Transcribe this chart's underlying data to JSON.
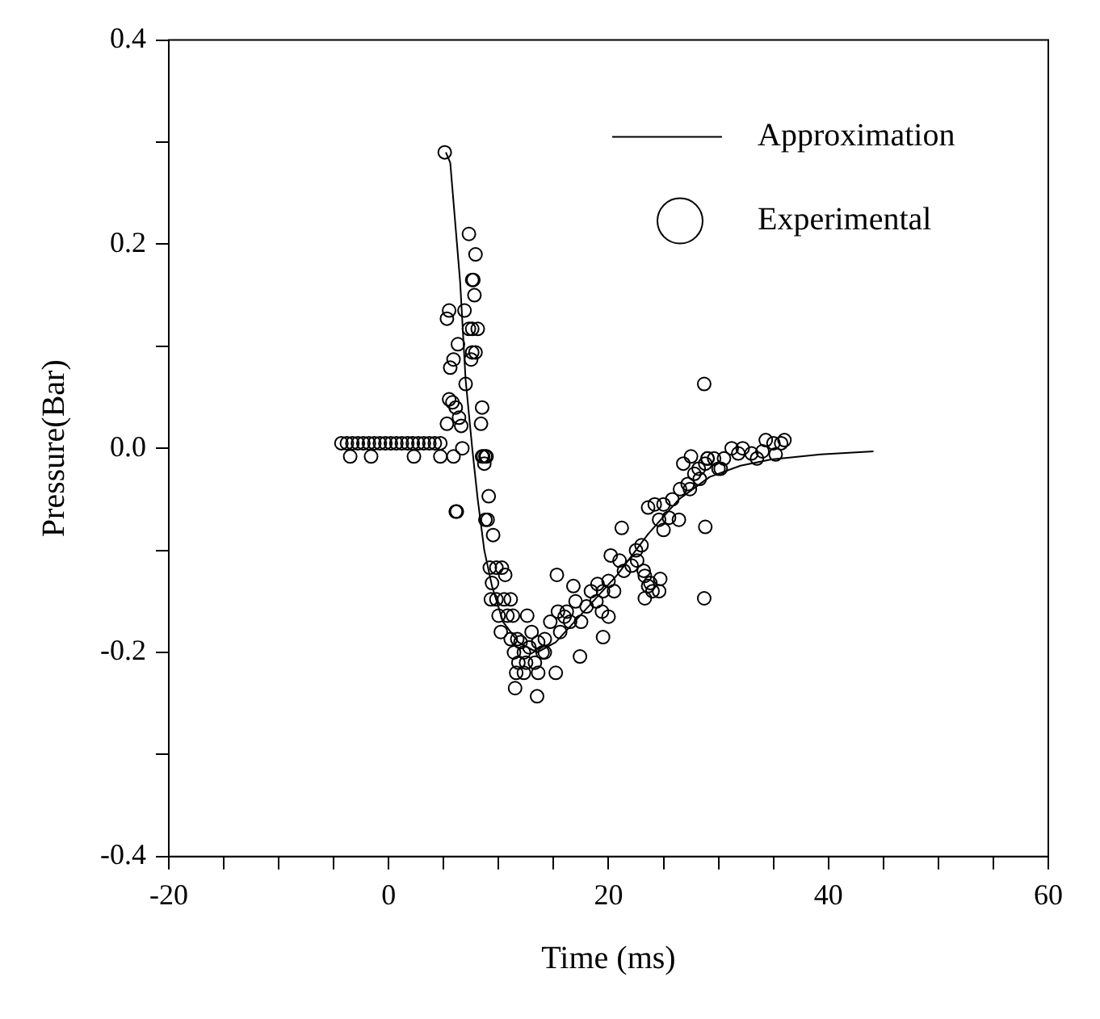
{
  "chart_data": {
    "type": "scatter",
    "xlabel": "Time (ms)",
    "ylabel": "Pressure(Bar)",
    "xlim": [
      -20,
      60
    ],
    "ylim": [
      -0.4,
      0.4
    ],
    "xticks": [
      -20,
      {
        "value": -15,
        "label": null
      },
      {
        "value": -10,
        "label": null
      },
      {
        "value": -5,
        "label": null
      },
      0,
      {
        "value": 5,
        "label": null
      },
      {
        "value": 10,
        "label": null
      },
      {
        "value": 15,
        "label": null
      },
      20,
      {
        "value": 25,
        "label": null
      },
      {
        "value": 30,
        "label": null
      },
      {
        "value": 35,
        "label": null
      },
      40,
      {
        "value": 45,
        "label": null
      },
      {
        "value": 50,
        "label": null
      },
      {
        "value": 55,
        "label": null
      },
      60
    ],
    "yticks": [
      -0.4,
      {
        "value": -0.3,
        "label": null
      },
      -0.2,
      {
        "value": -0.1,
        "label": null
      },
      {
        "value": 0,
        "label": "0.0"
      },
      {
        "value": 0.1,
        "label": null
      },
      0.2,
      {
        "value": 0.3,
        "label": null
      },
      0.4
    ],
    "grid": false,
    "legend": "top right",
    "series": [
      {
        "name": "Approximation",
        "type": "line",
        "marker": "none",
        "line_style": "solid",
        "color": "#000000",
        "x": [
          5.2,
          5.6,
          6.5,
          7.0,
          7.6,
          8.1,
          8.7,
          9.4,
          10.4,
          11.8,
          13.5,
          15.2,
          18,
          20.8,
          23.6,
          26.4,
          29.2,
          32,
          34.8,
          39.3,
          44.1
        ],
        "values": [
          0.29,
          0.28,
          0.163,
          0.067,
          0,
          -0.05,
          -0.1,
          -0.135,
          -0.17,
          -0.19,
          -0.2,
          -0.19,
          -0.157,
          -0.124,
          -0.084,
          -0.05,
          -0.028,
          -0.017,
          -0.011,
          -0.006,
          -0.003
        ]
      },
      {
        "name": "Experimental",
        "type": "scatter",
        "marker": "circle",
        "color": "#000000",
        "x": [
          -4.3,
          -3.8,
          -3.3,
          -2.8,
          -2.3,
          -1.8,
          -1.3,
          -0.8,
          -0.3,
          0.2,
          0.7,
          1.2,
          1.7,
          2.2,
          2.7,
          3.2,
          3.7,
          4.2,
          4.7,
          -3.5,
          -1.6,
          2.3,
          4.7,
          5.1,
          7.3,
          7.9,
          7.6,
          7.7,
          7.8,
          5.5,
          5.3,
          6.9,
          7.3,
          7.6,
          8.1,
          6.3,
          7.6,
          7.9,
          7.5,
          5.9,
          5.6,
          7.0,
          5.5,
          5.8,
          6.1,
          8.5,
          6.4,
          5.3,
          6.6,
          8.4,
          6.7,
          5.9,
          8.5,
          8.6,
          8.8,
          8.9,
          8.7,
          6.1,
          6.2,
          9.1,
          8.8,
          9.0,
          9.5,
          9.2,
          9.8,
          10.3,
          10.6,
          9.4,
          9.3,
          9.8,
          10.5,
          11.1,
          10.0,
          10.8,
          11.3,
          10.2,
          12.6,
          11.1,
          11.7,
          12.0,
          13.0,
          11.4,
          12.3,
          12.8,
          13.6,
          14.2,
          15.3,
          14.7,
          14.0,
          11.8,
          12.5,
          13.3,
          14.2,
          11.6,
          12.3,
          13.6,
          15.2,
          11.5,
          13.5,
          15.4,
          16.2,
          16.8,
          17.0,
          15.6,
          16.5,
          17.5,
          16.0,
          17.4,
          18.4,
          19.0,
          19.5,
          18.0,
          18.9,
          19.4,
          20.0,
          19.5,
          20.0,
          20.5,
          21.0,
          21.4,
          20.2,
          21.2,
          22.1,
          22.6,
          22.5,
          23.0,
          23.3,
          23.6,
          24.0,
          23.3,
          23.8,
          24.6,
          23.2,
          23.6,
          24.2,
          25.0,
          24.6,
          25.0,
          25.5,
          26.4,
          27.2,
          25.8,
          26.5,
          27.4,
          28.3,
          28.2,
          28.8,
          29.0,
          29.6,
          30.2,
          30.5,
          31.8,
          32.2,
          33.0,
          34.0,
          35.0,
          35.7,
          36.0,
          34.3,
          27.5,
          29.0,
          28.7,
          28.8,
          28.7,
          24.7,
          26.8,
          27.8,
          30.0,
          31.2,
          33.5,
          35.2
        ],
        "values": [
          0.005,
          0.005,
          0.005,
          0.005,
          0.005,
          0.005,
          0.005,
          0.005,
          0.005,
          0.005,
          0.005,
          0.005,
          0.005,
          0.005,
          0.005,
          0.005,
          0.005,
          0.005,
          0.005,
          -0.008,
          -0.008,
          -0.008,
          -0.008,
          0.29,
          0.21,
          0.19,
          0.165,
          0.165,
          0.15,
          0.135,
          0.127,
          0.135,
          0.117,
          0.117,
          0.117,
          0.102,
          0.094,
          0.094,
          0.087,
          0.087,
          0.079,
          0.063,
          0.048,
          0.045,
          0.04,
          0.04,
          0.03,
          0.024,
          0.022,
          0.024,
          0,
          -0.008,
          -0.008,
          -0.008,
          -0.008,
          -0.008,
          -0.015,
          -0.062,
          -0.062,
          -0.047,
          -0.07,
          -0.07,
          -0.085,
          -0.117,
          -0.117,
          -0.117,
          -0.124,
          -0.132,
          -0.148,
          -0.148,
          -0.148,
          -0.148,
          -0.164,
          -0.164,
          -0.164,
          -0.18,
          -0.164,
          -0.187,
          -0.187,
          -0.19,
          -0.18,
          -0.2,
          -0.2,
          -0.195,
          -0.19,
          -0.187,
          -0.124,
          -0.17,
          -0.2,
          -0.21,
          -0.21,
          -0.21,
          -0.2,
          -0.22,
          -0.22,
          -0.22,
          -0.22,
          -0.235,
          -0.243,
          -0.16,
          -0.16,
          -0.135,
          -0.15,
          -0.18,
          -0.17,
          -0.17,
          -0.165,
          -0.204,
          -0.14,
          -0.133,
          -0.14,
          -0.155,
          -0.15,
          -0.16,
          -0.165,
          -0.185,
          -0.13,
          -0.14,
          -0.11,
          -0.12,
          -0.105,
          -0.078,
          -0.115,
          -0.11,
          -0.1,
          -0.095,
          -0.125,
          -0.135,
          -0.14,
          -0.147,
          -0.132,
          -0.14,
          -0.12,
          -0.058,
          -0.055,
          -0.055,
          -0.07,
          -0.08,
          -0.068,
          -0.07,
          -0.035,
          -0.05,
          -0.04,
          -0.04,
          -0.03,
          -0.02,
          -0.015,
          -0.01,
          -0.01,
          -0.02,
          -0.01,
          -0.005,
          0,
          -0.005,
          -0.003,
          0.005,
          0.005,
          0.008,
          0.008,
          -0.008,
          -0.01,
          0.063,
          -0.077,
          -0.147,
          -0.128,
          -0.015,
          -0.025,
          -0.02,
          0,
          -0.01,
          -0.006
        ]
      }
    ]
  }
}
